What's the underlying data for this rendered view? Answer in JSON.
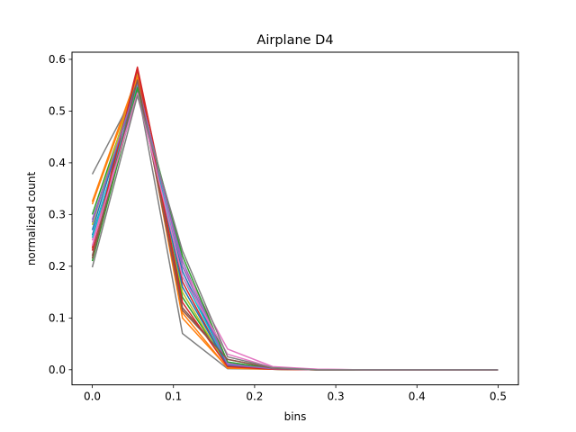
{
  "chart_data": {
    "type": "line",
    "title": "Airplane D4",
    "xlabel": "bins",
    "ylabel": "normalized count",
    "xlim": [
      -0.025,
      0.525
    ],
    "ylim": [
      -0.0292,
      0.6138
    ],
    "xticks": [
      0.0,
      0.1,
      0.2,
      0.3,
      0.4,
      0.5
    ],
    "xtick_labels": [
      "0.0",
      "0.1",
      "0.2",
      "0.3",
      "0.4",
      "0.5"
    ],
    "yticks": [
      0.0,
      0.1,
      0.2,
      0.3,
      0.4,
      0.5,
      0.6
    ],
    "ytick_labels": [
      "0.0",
      "0.1",
      "0.2",
      "0.3",
      "0.4",
      "0.5",
      "0.6"
    ],
    "grid": false,
    "legend": "none",
    "x": [
      0.0,
      0.0556,
      0.1111,
      0.1667,
      0.2222,
      0.2778,
      0.3333,
      0.3889,
      0.4444,
      0.5
    ],
    "series": [
      {
        "color": "#1f77b4",
        "values": [
          0.26,
          0.54,
          0.19,
          0.01,
          0.002,
          0.0,
          0.0,
          0.0,
          0.0,
          0.0
        ]
      },
      {
        "color": "#ff7f0e",
        "values": [
          0.325,
          0.57,
          0.1,
          0.004,
          0.001,
          0.0,
          0.0,
          0.0,
          0.0,
          0.0
        ]
      },
      {
        "color": "#2ca02c",
        "values": [
          0.3,
          0.56,
          0.14,
          0.008,
          0.001,
          0.0,
          0.0,
          0.0,
          0.0,
          0.0
        ]
      },
      {
        "color": "#d62728",
        "values": [
          0.235,
          0.585,
          0.17,
          0.006,
          0.001,
          0.0,
          0.0,
          0.0,
          0.0,
          0.0
        ]
      },
      {
        "color": "#9467bd",
        "values": [
          0.29,
          0.55,
          0.21,
          0.012,
          0.002,
          0.0,
          0.0,
          0.0,
          0.0,
          0.0
        ]
      },
      {
        "color": "#8c564b",
        "values": [
          0.22,
          0.565,
          0.12,
          0.02,
          0.003,
          0.0,
          0.0,
          0.0,
          0.0,
          0.0
        ]
      },
      {
        "color": "#e377c2",
        "values": [
          0.25,
          0.53,
          0.2,
          0.04,
          0.006,
          0.001,
          0.0,
          0.0,
          0.0,
          0.0
        ]
      },
      {
        "color": "#7f7f7f",
        "values": [
          0.378,
          0.545,
          0.07,
          0.002,
          0.001,
          0.0,
          0.0,
          0.0,
          0.0,
          0.0
        ]
      },
      {
        "color": "#bcbd22",
        "values": [
          0.28,
          0.575,
          0.15,
          0.005,
          0.001,
          0.0,
          0.0,
          0.0,
          0.0,
          0.0
        ]
      },
      {
        "color": "#17becf",
        "values": [
          0.255,
          0.55,
          0.18,
          0.01,
          0.002,
          0.0,
          0.0,
          0.0,
          0.0,
          0.0
        ]
      },
      {
        "color": "#1f77b4",
        "values": [
          0.27,
          0.56,
          0.16,
          0.008,
          0.001,
          0.0,
          0.0,
          0.0,
          0.0,
          0.0
        ]
      },
      {
        "color": "#ff7f0e",
        "values": [
          0.32,
          0.565,
          0.11,
          0.003,
          0.001,
          0.0,
          0.0,
          0.0,
          0.0,
          0.0
        ]
      },
      {
        "color": "#2ca02c",
        "values": [
          0.21,
          0.545,
          0.22,
          0.015,
          0.002,
          0.0,
          0.0,
          0.0,
          0.0,
          0.0
        ]
      },
      {
        "color": "#d62728",
        "values": [
          0.23,
          0.58,
          0.13,
          0.006,
          0.001,
          0.0,
          0.0,
          0.0,
          0.0,
          0.0
        ]
      },
      {
        "color": "#9467bd",
        "values": [
          0.285,
          0.555,
          0.2,
          0.01,
          0.002,
          0.0,
          0.0,
          0.0,
          0.0,
          0.0
        ]
      },
      {
        "color": "#8c564b",
        "values": [
          0.215,
          0.56,
          0.115,
          0.02,
          0.003,
          0.0,
          0.0,
          0.0,
          0.0,
          0.0
        ]
      },
      {
        "color": "#e377c2",
        "values": [
          0.24,
          0.535,
          0.18,
          0.03,
          0.004,
          0.001,
          0.0,
          0.0,
          0.0,
          0.0
        ]
      },
      {
        "color": "#7f7f7f",
        "values": [
          0.198,
          0.53,
          0.23,
          0.025,
          0.004,
          0.0,
          0.0,
          0.0,
          0.0,
          0.0
        ]
      }
    ]
  }
}
